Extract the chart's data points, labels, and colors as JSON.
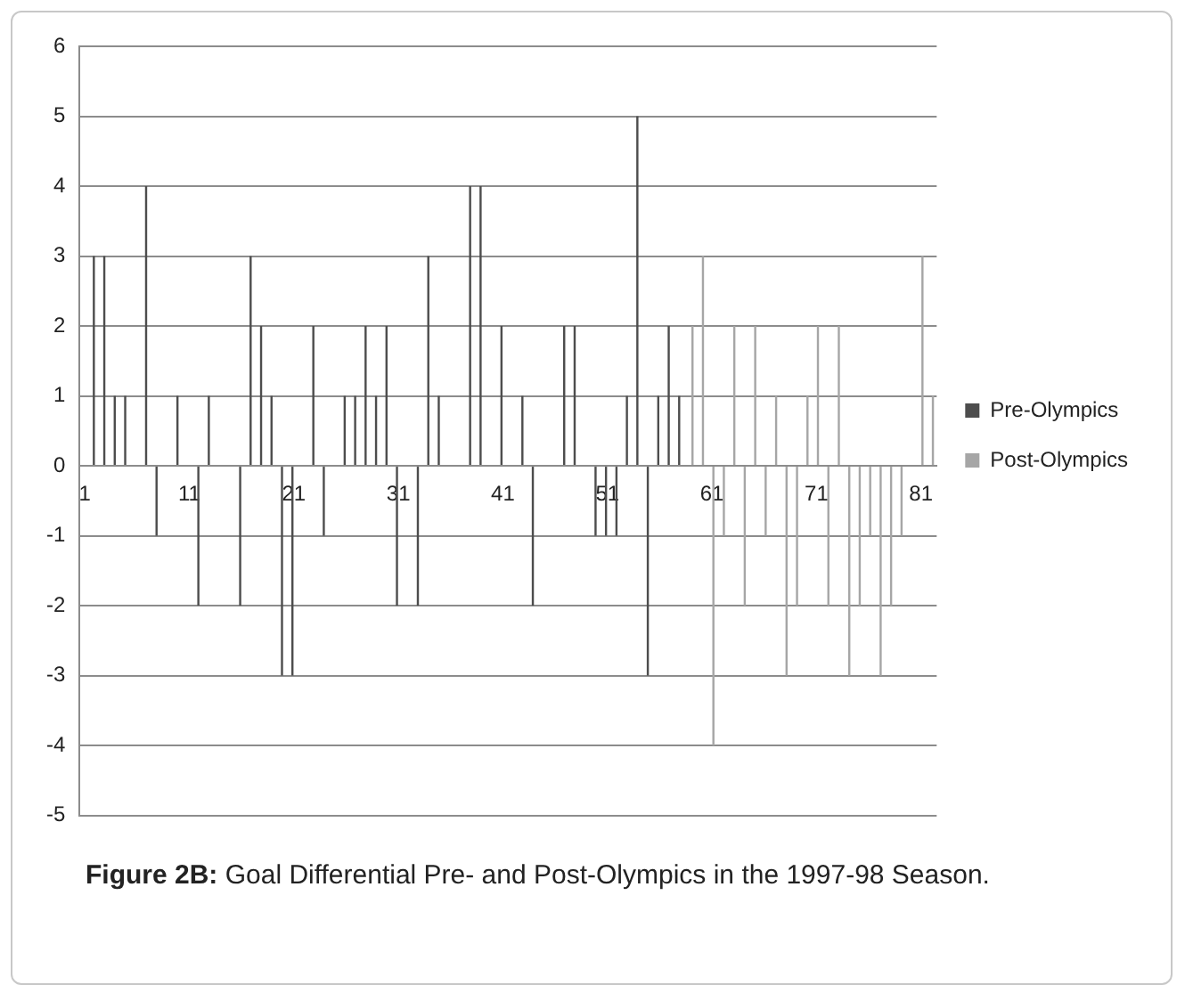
{
  "chart_data": {
    "type": "bar",
    "categories": [
      "1",
      null,
      null,
      null,
      null,
      null,
      null,
      null,
      null,
      null,
      "11",
      null,
      null,
      null,
      null,
      null,
      null,
      null,
      null,
      null,
      "21",
      null,
      null,
      null,
      null,
      null,
      null,
      null,
      null,
      null,
      "31",
      null,
      null,
      null,
      null,
      null,
      null,
      null,
      null,
      null,
      "41",
      null,
      null,
      null,
      null,
      null,
      null,
      null,
      null,
      null,
      "51",
      null,
      null,
      null,
      null,
      null,
      null,
      null,
      null,
      null,
      "61",
      null,
      null,
      null,
      null,
      null,
      null,
      null,
      null,
      null,
      "71",
      null,
      null,
      null,
      null,
      null,
      null,
      null,
      null,
      null,
      "81",
      null
    ],
    "series": [
      {
        "name": "Pre-Olympics",
        "color": "#4d4d4d",
        "values": [
          0,
          3,
          3,
          1,
          1,
          0,
          4,
          -1,
          0,
          1,
          0,
          -2,
          1,
          0,
          0,
          -2,
          3,
          2,
          1,
          -3,
          -3,
          0,
          2,
          -1,
          0,
          1,
          1,
          2,
          1,
          2,
          -2,
          0,
          -2,
          3,
          1,
          0,
          0,
          4,
          4,
          0,
          2,
          0,
          1,
          -2,
          0,
          0,
          2,
          2,
          0,
          -1,
          -1,
          -1,
          1,
          5,
          -3,
          1,
          2,
          1,
          null,
          null,
          null,
          null,
          null,
          null,
          null,
          null,
          null,
          null,
          null,
          null,
          null,
          null,
          null,
          null,
          null,
          null,
          null,
          null,
          null,
          null,
          null,
          null
        ]
      },
      {
        "name": "Post-Olympics",
        "color": "#a6a6a6",
        "values": [
          null,
          null,
          null,
          null,
          null,
          null,
          null,
          null,
          null,
          null,
          null,
          null,
          null,
          null,
          null,
          null,
          null,
          null,
          null,
          null,
          null,
          null,
          null,
          null,
          null,
          null,
          null,
          null,
          null,
          null,
          null,
          null,
          null,
          null,
          null,
          null,
          null,
          null,
          null,
          null,
          null,
          null,
          null,
          null,
          null,
          null,
          null,
          null,
          null,
          null,
          null,
          null,
          null,
          null,
          null,
          null,
          null,
          null,
          2,
          3,
          -4,
          -1,
          2,
          -2,
          2,
          -1,
          1,
          -3,
          -2,
          1,
          2,
          -2,
          2,
          -3,
          -2,
          -1,
          -3,
          -2,
          -1,
          0,
          3,
          1
        ]
      }
    ],
    "ylim": [
      -5,
      6
    ],
    "yticks": [
      -5,
      -4,
      -3,
      -2,
      -1,
      0,
      1,
      2,
      3,
      4,
      5,
      6
    ],
    "grid": "y",
    "legend": "right",
    "annotations": [
      "Figure 2B: Goal Differential Pre- and Post-Olympics in the 1997-98 Season."
    ]
  }
}
